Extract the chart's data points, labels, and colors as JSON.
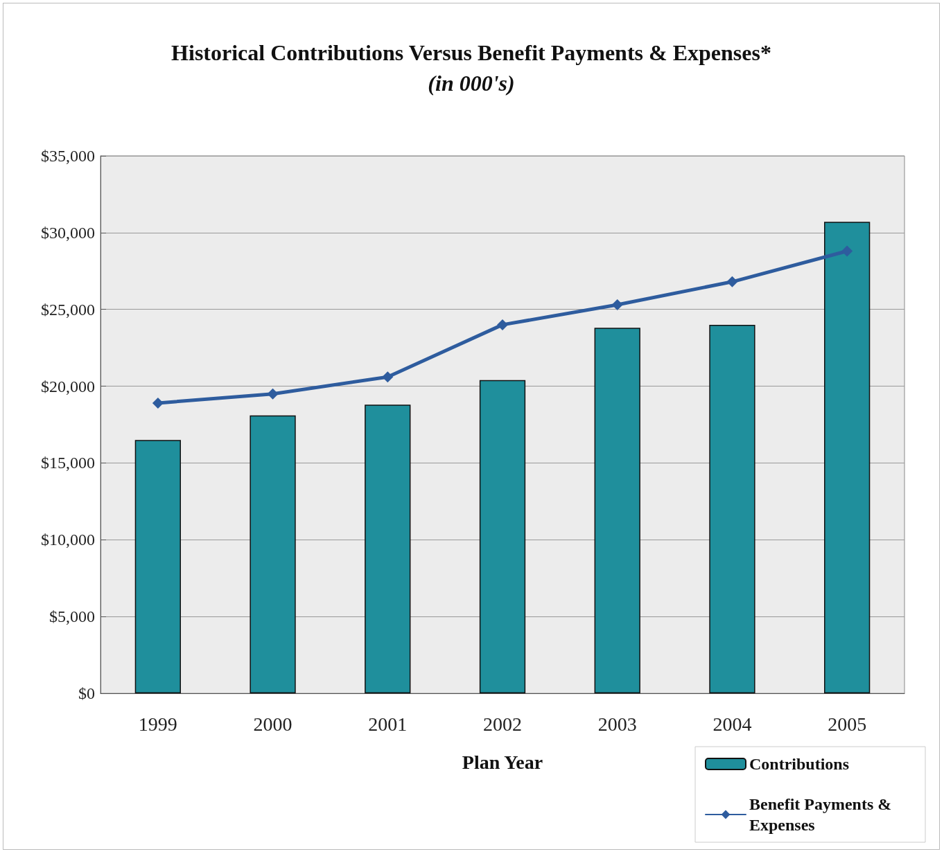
{
  "chart_data": {
    "type": "bar",
    "title": "Historical Contributions Versus Benefit Payments & Expenses*",
    "subtitle": "(in 000's)",
    "xlabel": "Plan Year",
    "categories": [
      "1999",
      "2000",
      "2001",
      "2002",
      "2003",
      "2004",
      "2005"
    ],
    "series": [
      {
        "name": "Contributions",
        "color": "#1f8f9c",
        "values": [
          16500,
          18100,
          18800,
          20400,
          23800,
          24000,
          30700
        ]
      },
      {
        "name": "Benefit Payments & Expenses",
        "type": "line",
        "color": "#2e5c9e",
        "marker": "diamond",
        "line_style": "solid",
        "values": [
          18900,
          19500,
          20600,
          24000,
          25300,
          26800,
          28800
        ]
      }
    ],
    "ylim": [
      0,
      35000
    ],
    "yticks": [
      {
        "value": 0,
        "label": "$0"
      },
      {
        "value": 5000,
        "label": "$5,000"
      },
      {
        "value": 10000,
        "label": "$10,000"
      },
      {
        "value": 15000,
        "label": "$15,000"
      },
      {
        "value": 20000,
        "label": "$20,000"
      },
      {
        "value": 25000,
        "label": "$25,000"
      },
      {
        "value": 30000,
        "label": "$30,000"
      },
      {
        "value": 35000,
        "label": "$35,000"
      }
    ],
    "grid": "y",
    "legend": "bottom right"
  }
}
